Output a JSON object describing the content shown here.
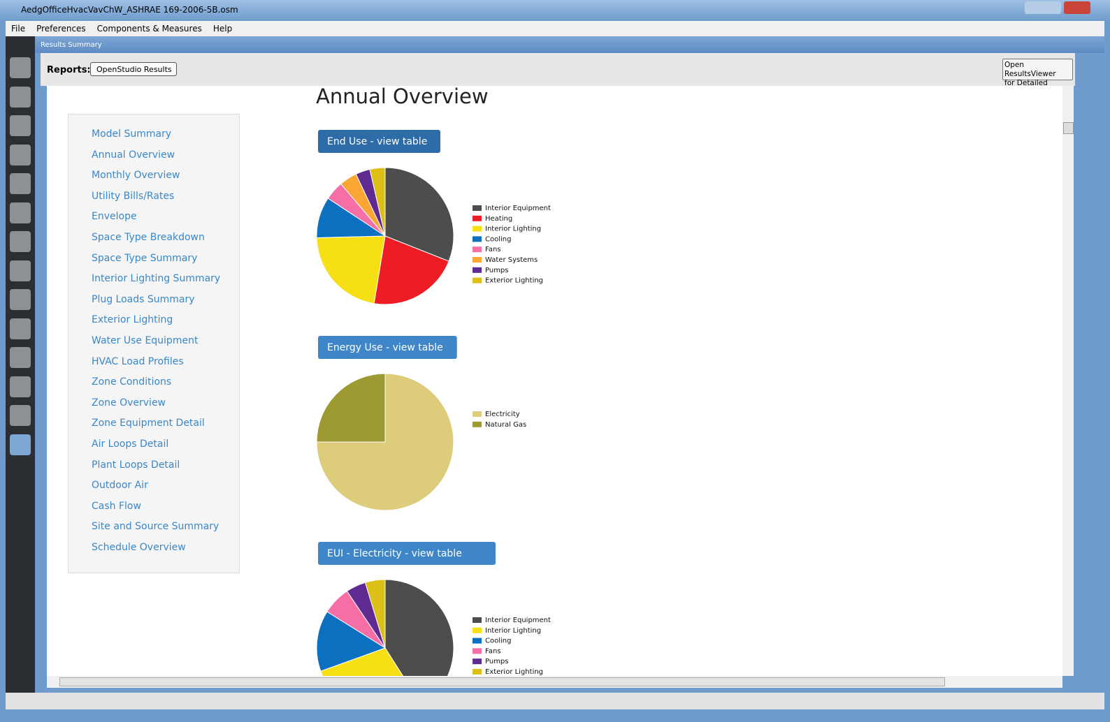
{
  "window": {
    "title": "AedgOfficeHvacVavChW_ASHRAE 169-2006-5B.osm"
  },
  "menu": [
    "File",
    "Preferences",
    "Components & Measures",
    "Help"
  ],
  "tab": "Results Summary",
  "toolbar": {
    "label": "Reports:",
    "select": "OpenStudio Results",
    "button": [
      "Open ResultsViewer",
      "for Detailed Reports"
    ]
  },
  "nav": [
    "Model Summary",
    "Annual Overview",
    "Monthly Overview",
    "Utility Bills/Rates",
    "Envelope",
    "Space Type Breakdown",
    "Space Type Summary",
    "Interior Lighting Summary",
    "Plug Loads Summary",
    "Exterior Lighting",
    "Water Use Equipment",
    "HVAC Load Profiles",
    "Zone Conditions",
    "Zone Overview",
    "Zone Equipment Detail",
    "Air Loops Detail",
    "Plant Loops Detail",
    "Outdoor Air",
    "Cash Flow",
    "Site and Source Summary",
    "Schedule Overview"
  ],
  "heading": "Annual Overview",
  "charts": [
    {
      "type": "pie",
      "button": "End Use - view table",
      "categories": [
        "Interior Equipment",
        "Heating",
        "Interior Lighting",
        "Cooling",
        "Fans",
        "Water Systems",
        "Pumps",
        "Exterior Lighting"
      ],
      "values": [
        31,
        21.6,
        22,
        9.7,
        4.5,
        4.2,
        3.4,
        3.6
      ],
      "colors": [
        "#4d4d4b",
        "#ee1c25",
        "#f7df16",
        "#0c70c0",
        "#f56ea5",
        "#faa635",
        "#5f2b91",
        "#dcbf17"
      ]
    },
    {
      "type": "pie",
      "button": "Energy Use - view table",
      "categories": [
        "Electricity",
        "Natural Gas"
      ],
      "values": [
        75,
        25
      ],
      "colors": [
        "#ddcc7c",
        "#9d9a33"
      ]
    },
    {
      "type": "pie",
      "button": "EUI - Electricity - view table",
      "categories": [
        "Interior Equipment",
        "Interior Lighting",
        "Cooling",
        "Fans",
        "Pumps",
        "Exterior Lighting"
      ],
      "values": [
        41,
        28.5,
        14.4,
        6.7,
        4.7,
        4.7
      ],
      "colors": [
        "#4d4d4b",
        "#f7df16",
        "#0c70c0",
        "#f56ea5",
        "#5f2b91",
        "#dcbf17"
      ]
    }
  ]
}
